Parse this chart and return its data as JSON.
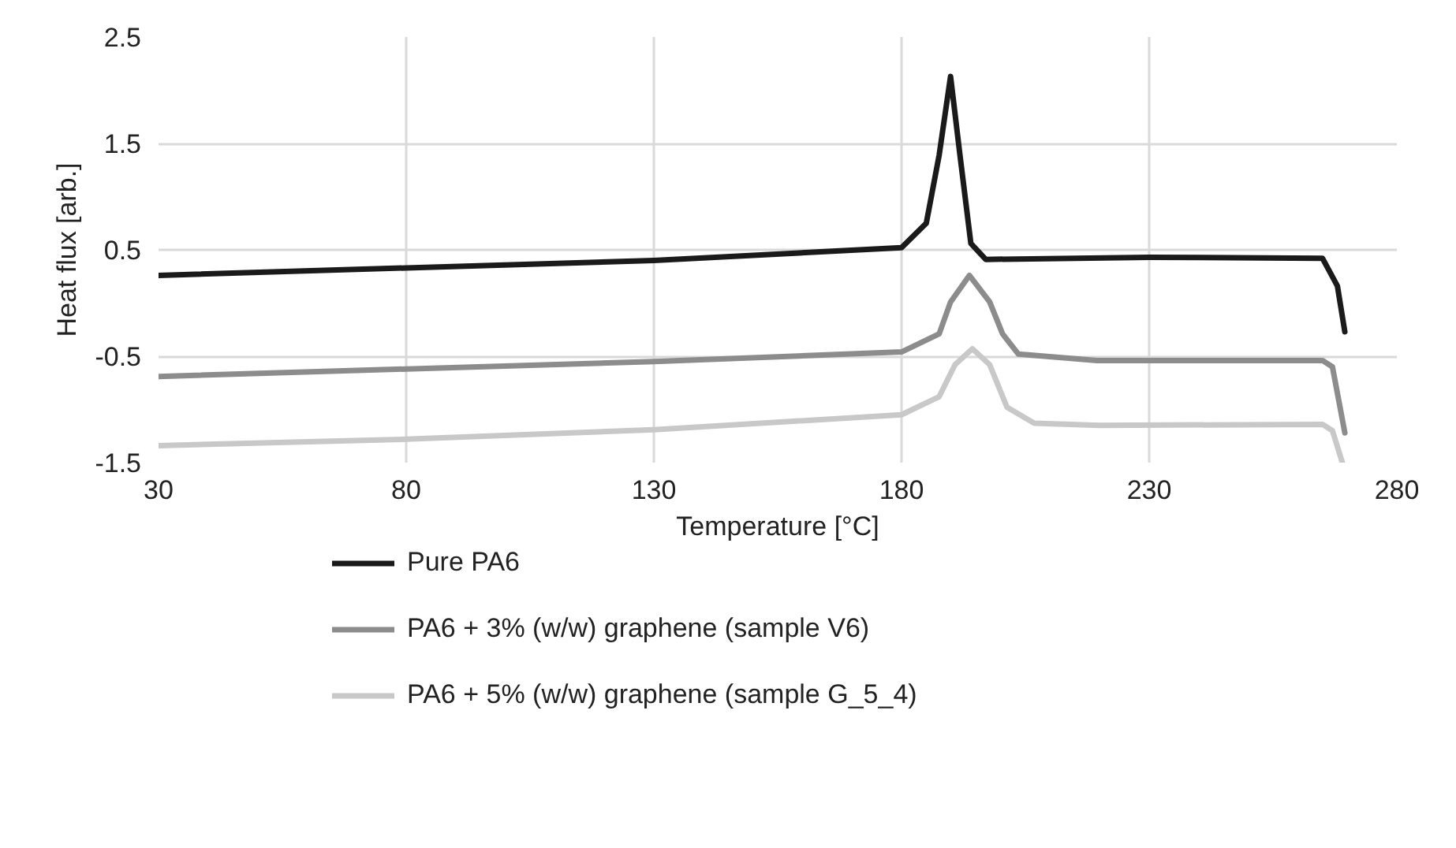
{
  "chart_data": {
    "type": "line",
    "xlabel": "Temperature [°C]",
    "ylabel": "Heat flux [arb.]",
    "xlim": [
      30,
      280
    ],
    "ylim": [
      -1.5,
      2.5
    ],
    "xticks": [
      30,
      80,
      130,
      180,
      230,
      280
    ],
    "yticks": [
      -1.5,
      -0.5,
      0.5,
      1.5,
      2.5
    ],
    "grid": true,
    "legend": "bottom",
    "line_style": "solid",
    "series": [
      {
        "name": "Pure PA6",
        "color": "#1a1a1a",
        "x": [
          30,
          80,
          130,
          180,
          185,
          187.6,
          189.9,
          191.8,
          194,
          197,
          230,
          265,
          268,
          269.5
        ],
        "values": [
          0.26,
          0.33,
          0.4,
          0.52,
          0.75,
          1.39,
          2.13,
          1.39,
          0.56,
          0.41,
          0.43,
          0.42,
          0.16,
          -0.27
        ]
      },
      {
        "name": "PA6 + 3% (w/w) graphene (sample V6)",
        "color": "#8c8c8c",
        "x": [
          30,
          80,
          130,
          180,
          187.6,
          189.9,
          193.7,
          197.8,
          200.4,
          203.6,
          219.5,
          265,
          267,
          269.5
        ],
        "values": [
          -0.69,
          -0.62,
          -0.55,
          -0.46,
          -0.29,
          0.01,
          0.26,
          0.01,
          -0.29,
          -0.48,
          -0.54,
          -0.54,
          -0.6,
          -1.22
        ]
      },
      {
        "name": "PA6 + 5% (w/w) graphene (sample G_5_4)",
        "color": "#c8c8c8",
        "x": [
          30,
          80,
          130,
          180,
          187.6,
          190.8,
          194.3,
          197.8,
          201.3,
          206.8,
          220,
          265,
          267,
          269
        ],
        "values": [
          -1.34,
          -1.28,
          -1.19,
          -1.05,
          -0.88,
          -0.58,
          -0.43,
          -0.58,
          -0.98,
          -1.13,
          -1.15,
          -1.14,
          -1.2,
          -1.5
        ]
      }
    ]
  }
}
